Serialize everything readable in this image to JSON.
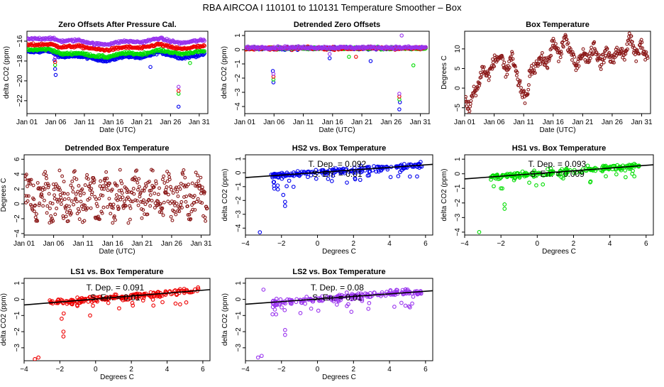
{
  "supertitle": "RBA   AIRCOA I   110101 to 110131   Temperature Smoother – Box",
  "colors": {
    "hs1": "#00dd00",
    "hs2": "#0000ee",
    "ls1": "#ee0000",
    "ls2": "#9933ee",
    "box": "#8b1a1a",
    "fit": "#000000"
  },
  "chart_data": [
    {
      "id": "zero_offsets",
      "type": "scatter",
      "title": "Zero Offsets After Pressure Cal.",
      "xlabel": "Date (UTC)",
      "ylabel": "delta CO2 (ppm)",
      "xlim": [
        0,
        31.5
      ],
      "ylim": [
        -23.3,
        -15
      ],
      "xticks": [
        {
          "v": 0,
          "label": "Jan 01"
        },
        {
          "v": 5,
          "label": "Jan 06"
        },
        {
          "v": 10,
          "label": "Jan 11"
        },
        {
          "v": 15,
          "label": "Jan 16"
        },
        {
          "v": 20,
          "label": "Jan 21"
        },
        {
          "v": 25,
          "label": "Jan 26"
        },
        {
          "v": 30,
          "label": "Jan 31"
        }
      ],
      "yticks": [
        -22,
        -20,
        -18,
        -16
      ],
      "series": [
        {
          "name": "HS2",
          "color": "hs2",
          "base": [
            [
              0,
              -17.1
            ],
            [
              4,
              -17.0
            ],
            [
              6,
              -17.6
            ],
            [
              9,
              -17.5
            ],
            [
              12,
              -17.8
            ],
            [
              14,
              -18.0
            ],
            [
              17,
              -17.5
            ],
            [
              20,
              -17.7
            ],
            [
              23,
              -17.1
            ],
            [
              25,
              -17.4
            ],
            [
              27,
              -17.7
            ],
            [
              29,
              -17.5
            ],
            [
              31,
              -17.3
            ]
          ],
          "outliers": [
            [
              4.9,
              -18.8
            ],
            [
              5.0,
              -19.4
            ],
            [
              4.8,
              -17.9
            ],
            [
              26.4,
              -22.6
            ],
            [
              21.5,
              -18.6
            ]
          ]
        },
        {
          "name": "HS1",
          "color": "hs1",
          "base": [
            [
              0,
              -16.9
            ],
            [
              4,
              -16.8
            ],
            [
              6,
              -17.3
            ],
            [
              9,
              -17.2
            ],
            [
              12,
              -17.5
            ],
            [
              14,
              -17.6
            ],
            [
              17,
              -17.2
            ],
            [
              20,
              -17.3
            ],
            [
              23,
              -16.9
            ],
            [
              25,
              -17.1
            ],
            [
              27,
              -17.3
            ],
            [
              29,
              -17.1
            ],
            [
              31,
              -17.0
            ]
          ],
          "outliers": [
            [
              4.9,
              -18.4
            ],
            [
              26.4,
              -21.3
            ],
            [
              28.4,
              -18.2
            ]
          ]
        },
        {
          "name": "LS1",
          "color": "ls1",
          "base": [
            [
              0,
              -16.4
            ],
            [
              4,
              -16.3
            ],
            [
              6,
              -16.6
            ],
            [
              9,
              -16.5
            ],
            [
              12,
              -16.8
            ],
            [
              14,
              -16.9
            ],
            [
              17,
              -16.6
            ],
            [
              20,
              -16.7
            ],
            [
              23,
              -16.3
            ],
            [
              25,
              -16.6
            ],
            [
              27,
              -16.8
            ],
            [
              29,
              -16.6
            ],
            [
              31,
              -16.5
            ]
          ],
          "outliers": [
            [
              4.9,
              -18.1
            ],
            [
              26.4,
              -21.0
            ]
          ]
        },
        {
          "name": "LS2",
          "color": "ls2",
          "base": [
            [
              0,
              -15.8
            ],
            [
              4,
              -15.7
            ],
            [
              6,
              -16.0
            ],
            [
              9,
              -15.9
            ],
            [
              12,
              -16.3
            ],
            [
              14,
              -16.3
            ],
            [
              17,
              -16.0
            ],
            [
              20,
              -16.1
            ],
            [
              23,
              -15.7
            ],
            [
              25,
              -16.0
            ],
            [
              27,
              -16.2
            ],
            [
              29,
              -16.0
            ],
            [
              31,
              -15.9
            ]
          ],
          "outliers": [
            [
              4.9,
              -17.7
            ],
            [
              26.4,
              -20.6
            ]
          ]
        }
      ]
    },
    {
      "id": "detrended_zero",
      "type": "scatter",
      "title": "Detrended Zero Offsets",
      "xlabel": "Date (UTC)",
      "ylabel": "delta CO2 (ppm)",
      "xlim": [
        0,
        31.5
      ],
      "ylim": [
        -4.5,
        1.3
      ],
      "xticks": [
        {
          "v": 0,
          "label": "Jan 01"
        },
        {
          "v": 5,
          "label": "Jan 06"
        },
        {
          "v": 10,
          "label": "Jan 11"
        },
        {
          "v": 15,
          "label": "Jan 16"
        },
        {
          "v": 20,
          "label": "Jan 21"
        },
        {
          "v": 25,
          "label": "Jan 26"
        },
        {
          "v": 30,
          "label": "Jan 31"
        }
      ],
      "yticks": [
        -4,
        -3,
        -2,
        -1,
        0,
        1
      ],
      "series": [
        {
          "name": "HS2",
          "color": "hs2",
          "base": [
            [
              0,
              0.1
            ],
            [
              31,
              0.1
            ]
          ],
          "outliers": [
            [
              4.9,
              -2.3
            ],
            [
              4.8,
              -1.5
            ],
            [
              26.4,
              -4.2
            ],
            [
              26.5,
              -3.7
            ],
            [
              21.5,
              -0.8
            ],
            [
              14.5,
              -0.6
            ]
          ]
        },
        {
          "name": "HS1",
          "color": "hs1",
          "base": [
            [
              0,
              0.1
            ],
            [
              31,
              0.1
            ]
          ],
          "outliers": [
            [
              4.9,
              -2.1
            ],
            [
              26.4,
              -3.5
            ],
            [
              28.8,
              -1.1
            ],
            [
              17.8,
              -0.5
            ]
          ]
        },
        {
          "name": "LS1",
          "color": "ls1",
          "base": [
            [
              0,
              0.1
            ],
            [
              31,
              0.1
            ]
          ],
          "outliers": [
            [
              4.9,
              -1.9
            ],
            [
              26.4,
              -3.3
            ],
            [
              19.0,
              -0.5
            ]
          ]
        },
        {
          "name": "LS2",
          "color": "ls2",
          "base": [
            [
              0,
              0.15
            ],
            [
              31,
              0.15
            ]
          ],
          "outliers": [
            [
              4.9,
              -1.7
            ],
            [
              26.4,
              -3.1
            ],
            [
              26.8,
              1.0
            ],
            [
              14.5,
              -0.3
            ]
          ]
        }
      ]
    },
    {
      "id": "box_temp",
      "type": "line",
      "title": "Box Temperature",
      "xlabel": "Date (UTC)",
      "ylabel": "Degrees C",
      "xlim": [
        0,
        31.5
      ],
      "ylim": [
        -6.5,
        14.5
      ],
      "xticks": [
        {
          "v": 0,
          "label": "Jan 01"
        },
        {
          "v": 5,
          "label": "Jan 06"
        },
        {
          "v": 10,
          "label": "Jan 11"
        },
        {
          "v": 15,
          "label": "Jan 16"
        },
        {
          "v": 20,
          "label": "Jan 21"
        },
        {
          "v": 25,
          "label": "Jan 26"
        },
        {
          "v": 30,
          "label": "Jan 31"
        }
      ],
      "yticks": [
        -5,
        0,
        5,
        10
      ],
      "series": [
        {
          "name": "Box",
          "color": "box",
          "path": [
            [
              0,
              -2
            ],
            [
              0.8,
              -5.5
            ],
            [
              1.5,
              -1
            ],
            [
              2.2,
              0
            ],
            [
              3,
              5
            ],
            [
              4,
              3
            ],
            [
              5,
              7
            ],
            [
              6,
              8
            ],
            [
              7,
              4
            ],
            [
              8,
              8
            ],
            [
              9,
              2
            ],
            [
              10,
              -2
            ],
            [
              10.5,
              -3
            ],
            [
              11,
              4
            ],
            [
              12,
              5
            ],
            [
              13,
              8
            ],
            [
              14,
              6
            ],
            [
              15,
              12
            ],
            [
              16,
              8
            ],
            [
              17,
              13
            ],
            [
              18,
              9
            ],
            [
              19,
              5
            ],
            [
              20,
              9
            ],
            [
              21,
              7
            ],
            [
              22,
              11
            ],
            [
              23,
              6
            ],
            [
              24,
              9
            ],
            [
              25,
              7
            ],
            [
              26,
              10
            ],
            [
              27,
              8
            ],
            [
              28,
              13
            ],
            [
              29,
              8
            ],
            [
              30,
              11
            ],
            [
              31,
              7
            ]
          ],
          "amp": 3
        }
      ]
    },
    {
      "id": "detrended_box",
      "type": "line",
      "title": "Detrended Box Temperature",
      "xlabel": "Date (UTC)",
      "ylabel": "Degrees C",
      "xlim": [
        0,
        31.5
      ],
      "ylim": [
        -4.2,
        6.6
      ],
      "xticks": [
        {
          "v": 0,
          "label": "Jan 01"
        },
        {
          "v": 5,
          "label": "Jan 06"
        },
        {
          "v": 10,
          "label": "Jan 11"
        },
        {
          "v": 15,
          "label": "Jan 16"
        },
        {
          "v": 20,
          "label": "Jan 21"
        },
        {
          "v": 25,
          "label": "Jan 26"
        },
        {
          "v": 30,
          "label": "Jan 31"
        }
      ],
      "yticks": [
        -4,
        -2,
        0,
        2,
        4,
        6
      ],
      "series": [
        {
          "name": "Box",
          "color": "box",
          "lo": -2.5,
          "hi": 5.0
        }
      ]
    },
    {
      "id": "hs2_vs_box",
      "type": "scatter",
      "title": "HS2 vs. Box Temperature",
      "xlabel": "Degrees C",
      "ylabel": "delta CO2 (ppm)",
      "xlim": [
        -4,
        6.4
      ],
      "ylim": [
        -4.5,
        1.3
      ],
      "xticks": [
        {
          "v": -4,
          "label": "−4"
        },
        {
          "v": -2,
          "label": "−2"
        },
        {
          "v": 0,
          "label": "0"
        },
        {
          "v": 2,
          "label": "2"
        },
        {
          "v": 4,
          "label": "4"
        },
        {
          "v": 6,
          "label": "6"
        }
      ],
      "yticks": [
        -4,
        -3,
        -2,
        -1,
        0,
        1
      ],
      "color": "hs2",
      "slope": 0.092,
      "intercept": 0.02,
      "outliers": [
        [
          -1.8,
          -2.4
        ],
        [
          -1.8,
          -2.1
        ],
        [
          -1.9,
          -1.6
        ],
        [
          -3.2,
          -4.3
        ],
        [
          -2.2,
          -1.2
        ],
        [
          0.8,
          -0.6
        ]
      ],
      "annotation": [
        "T. Dep. =  0.092",
        "S. Err. =  0.01"
      ]
    },
    {
      "id": "hs1_vs_box",
      "type": "scatter",
      "title": "HS1 vs. Box Temperature",
      "xlabel": "Degrees C",
      "ylabel": "delta CO2 (ppm)",
      "xlim": [
        -4,
        6.4
      ],
      "ylim": [
        -4.2,
        1.3
      ],
      "xticks": [
        {
          "v": -4,
          "label": "−4"
        },
        {
          "v": -2,
          "label": "−2"
        },
        {
          "v": 0,
          "label": "0"
        },
        {
          "v": 2,
          "label": "2"
        },
        {
          "v": 4,
          "label": "4"
        },
        {
          "v": 6,
          "label": "6"
        }
      ],
      "yticks": [
        -4,
        -3,
        -2,
        -1,
        0,
        1
      ],
      "color": "hs1",
      "slope": 0.093,
      "intercept": 0.02,
      "outliers": [
        [
          -1.8,
          -2.4
        ],
        [
          -1.8,
          -2.1
        ],
        [
          -3.2,
          -4.0
        ],
        [
          -2.0,
          -1.0
        ]
      ],
      "annotation": [
        "T. Dep. =  0.093",
        "S. Err. =  0.009"
      ]
    },
    {
      "id": "ls1_vs_box",
      "type": "scatter",
      "title": "LS1 vs. Box Temperature",
      "xlabel": "Degrees C",
      "ylabel": "delta CO2 (ppm)",
      "xlim": [
        -4,
        6.4
      ],
      "ylim": [
        -3.8,
        1.3
      ],
      "xticks": [
        {
          "v": -4,
          "label": "−4"
        },
        {
          "v": -2,
          "label": "−2"
        },
        {
          "v": 0,
          "label": "0"
        },
        {
          "v": 2,
          "label": "2"
        },
        {
          "v": 4,
          "label": "4"
        },
        {
          "v": 6,
          "label": "6"
        }
      ],
      "yticks": [
        -3,
        -2,
        -1,
        0,
        1
      ],
      "color": "ls1",
      "slope": 0.091,
      "intercept": 0.02,
      "outliers": [
        [
          -1.8,
          -2.3
        ],
        [
          -1.8,
          -2.0
        ],
        [
          -3.2,
          -3.6
        ],
        [
          -3.4,
          -3.7
        ],
        [
          -1.9,
          -1.2
        ]
      ],
      "annotation": [
        "T. Dep. =  0.091",
        "S. Err. =  0.01"
      ]
    },
    {
      "id": "ls2_vs_box",
      "type": "scatter",
      "title": "LS2 vs. Box Temperature",
      "xlabel": "Degrees C",
      "ylabel": "delta CO2 (ppm)",
      "xlim": [
        -4,
        6.4
      ],
      "ylim": [
        -3.8,
        1.3
      ],
      "xticks": [
        {
          "v": -4,
          "label": "−4"
        },
        {
          "v": -2,
          "label": "−2"
        },
        {
          "v": 0,
          "label": "0"
        },
        {
          "v": 2,
          "label": "2"
        },
        {
          "v": 4,
          "label": "4"
        },
        {
          "v": 6,
          "label": "6"
        }
      ],
      "yticks": [
        -3,
        -2,
        -1,
        0,
        1
      ],
      "color": "ls2",
      "slope": 0.08,
      "intercept": 0.02,
      "outliers": [
        [
          -1.8,
          -2.2
        ],
        [
          -1.8,
          -1.9
        ],
        [
          -3.1,
          -3.5
        ],
        [
          -3.3,
          -3.6
        ],
        [
          -3.0,
          0.6
        ]
      ],
      "annotation": [
        "T. Dep. =  0.08",
        "S. Err. =  0.01"
      ]
    }
  ]
}
